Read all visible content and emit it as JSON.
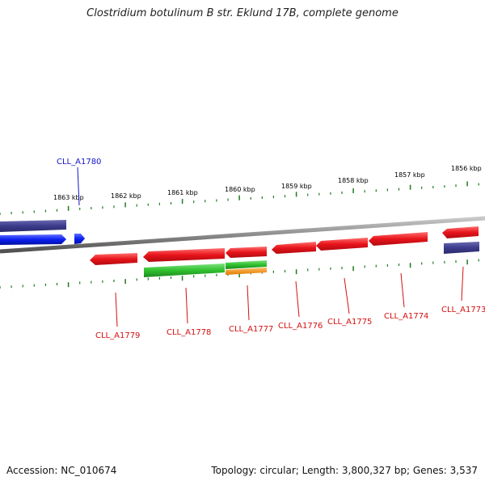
{
  "title": "Clostridium botulinum B str. Eklund 17B, complete genome",
  "accession": "Accession: NC_010674",
  "summary": "Topology: circular; Length: 3,800,327 bp; Genes: 3,537",
  "tick_labels": [
    "1863 kbp",
    "1862 kbp",
    "1861 kbp",
    "1860 kbp",
    "1859 kbp",
    "1858 kbp",
    "1857 kbp",
    "1856 kbp"
  ],
  "gene_labels": {
    "cll_a1780": "CLL_A1780",
    "cll_a1779": "CLL_A1779",
    "cll_a1778": "CLL_A1778",
    "cll_a1777": "CLL_A1777",
    "cll_a1776": "CLL_A1776",
    "cll_a1775": "CLL_A1775",
    "cll_a1774": "CLL_A1774",
    "cll_a1773": "CLL_A1773"
  },
  "colors": {
    "cds_reverse": "#e8141b",
    "cds_forward": "#0a1ef0",
    "gene_track": "#3c3c8c",
    "rrna_green": "#2fc02f",
    "orange": "#f08c14",
    "tick": "#1e7a1e",
    "backbone": "#8c8c8c"
  }
}
